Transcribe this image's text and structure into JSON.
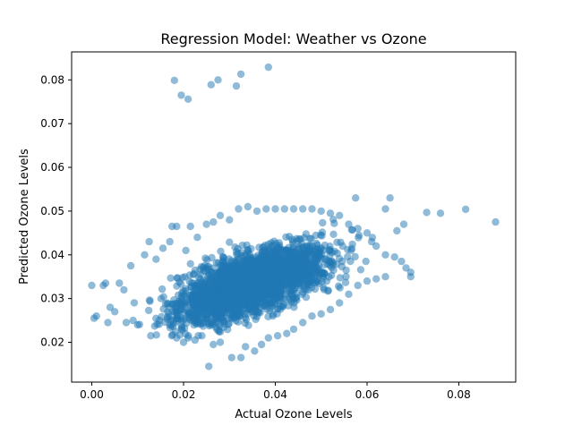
{
  "chart_data": {
    "type": "scatter",
    "title": "Regression Model: Weather vs Ozone",
    "xlabel": "Actual Ozone Levels",
    "ylabel": "Predicted Ozone Levels",
    "xlim": [
      -0.0044,
      0.0924
    ],
    "ylim": [
      0.0109,
      0.0864
    ],
    "xticks": [
      {
        "value": 0.0,
        "label": "0.00"
      },
      {
        "value": 0.02,
        "label": "0.02"
      },
      {
        "value": 0.04,
        "label": "0.04"
      },
      {
        "value": 0.06,
        "label": "0.06"
      },
      {
        "value": 0.08,
        "label": "0.08"
      }
    ],
    "yticks": [
      {
        "value": 0.02,
        "label": "0.02"
      },
      {
        "value": 0.03,
        "label": "0.03"
      },
      {
        "value": 0.04,
        "label": "0.04"
      },
      {
        "value": 0.05,
        "label": "0.05"
      },
      {
        "value": 0.06,
        "label": "0.06"
      },
      {
        "value": 0.07,
        "label": "0.07"
      },
      {
        "value": 0.08,
        "label": "0.08"
      }
    ],
    "grid": false,
    "legend": "none",
    "marker_color": "#1f77b4",
    "marker_opacity": 0.5,
    "series": [
      {
        "points": [
          [
            0.018,
            0.0799
          ],
          [
            0.0195,
            0.0765
          ],
          [
            0.021,
            0.0756
          ],
          [
            0.026,
            0.0789
          ],
          [
            0.0275,
            0.08
          ],
          [
            0.0315,
            0.0786
          ],
          [
            0.0325,
            0.0813
          ],
          [
            0.0385,
            0.0829
          ],
          [
            0.088,
            0.0475
          ],
          [
            0.0815,
            0.0504
          ],
          [
            0.076,
            0.0495
          ],
          [
            0.073,
            0.0497
          ],
          [
            0.0695,
            0.035
          ],
          [
            0.0695,
            0.036
          ],
          [
            0.068,
            0.047
          ],
          [
            0.0665,
            0.0455
          ],
          [
            0.065,
            0.053
          ],
          [
            0.064,
            0.0505
          ],
          [
            0.061,
            0.043
          ],
          [
            0.0575,
            0.053
          ],
          [
            0.0,
            0.033
          ],
          [
            0.0005,
            0.0255
          ],
          [
            0.001,
            0.026
          ],
          [
            0.0025,
            0.033
          ],
          [
            0.003,
            0.0335
          ],
          [
            0.0035,
            0.0245
          ],
          [
            0.004,
            0.028
          ],
          [
            0.005,
            0.027
          ],
          [
            0.006,
            0.0335
          ],
          [
            0.007,
            0.032
          ],
          [
            0.0075,
            0.0245
          ],
          [
            0.0085,
            0.0375
          ],
          [
            0.009,
            0.025
          ],
          [
            0.01,
            0.024
          ],
          [
            0.0115,
            0.04
          ],
          [
            0.0125,
            0.043
          ],
          [
            0.014,
            0.039
          ],
          [
            0.0155,
            0.0415
          ],
          [
            0.017,
            0.043
          ],
          [
            0.0175,
            0.0465
          ],
          [
            0.0185,
            0.0465
          ],
          [
            0.0205,
            0.041
          ],
          [
            0.0215,
            0.0465
          ],
          [
            0.023,
            0.044
          ],
          [
            0.025,
            0.047
          ],
          [
            0.0265,
            0.0475
          ],
          [
            0.028,
            0.049
          ],
          [
            0.03,
            0.048
          ],
          [
            0.032,
            0.0505
          ],
          [
            0.034,
            0.051
          ],
          [
            0.036,
            0.05
          ],
          [
            0.038,
            0.0505
          ],
          [
            0.04,
            0.0505
          ],
          [
            0.042,
            0.0505
          ],
          [
            0.044,
            0.0505
          ],
          [
            0.046,
            0.0505
          ],
          [
            0.048,
            0.0505
          ],
          [
            0.05,
            0.05
          ],
          [
            0.052,
            0.0495
          ],
          [
            0.054,
            0.049
          ],
          [
            0.056,
            0.047
          ],
          [
            0.058,
            0.046
          ],
          [
            0.06,
            0.045
          ],
          [
            0.062,
            0.042
          ],
          [
            0.064,
            0.04
          ],
          [
            0.066,
            0.0395
          ],
          [
            0.0675,
            0.0385
          ],
          [
            0.0685,
            0.037
          ],
          [
            0.017,
            0.024
          ],
          [
            0.0185,
            0.021
          ],
          [
            0.02,
            0.02
          ],
          [
            0.021,
            0.021
          ],
          [
            0.0225,
            0.0205
          ],
          [
            0.024,
            0.0215
          ],
          [
            0.0255,
            0.0145
          ],
          [
            0.0265,
            0.0195
          ],
          [
            0.028,
            0.02
          ],
          [
            0.0305,
            0.0165
          ],
          [
            0.0325,
            0.0165
          ],
          [
            0.0335,
            0.019
          ],
          [
            0.0355,
            0.018
          ],
          [
            0.037,
            0.0195
          ],
          [
            0.0385,
            0.021
          ],
          [
            0.0405,
            0.0215
          ],
          [
            0.0425,
            0.022
          ],
          [
            0.044,
            0.023
          ],
          [
            0.046,
            0.0245
          ],
          [
            0.048,
            0.026
          ],
          [
            0.05,
            0.0265
          ],
          [
            0.052,
            0.0275
          ],
          [
            0.054,
            0.029
          ],
          [
            0.056,
            0.031
          ],
          [
            0.058,
            0.033
          ],
          [
            0.06,
            0.034
          ],
          [
            0.062,
            0.0345
          ],
          [
            0.064,
            0.035
          ]
        ]
      }
    ]
  }
}
